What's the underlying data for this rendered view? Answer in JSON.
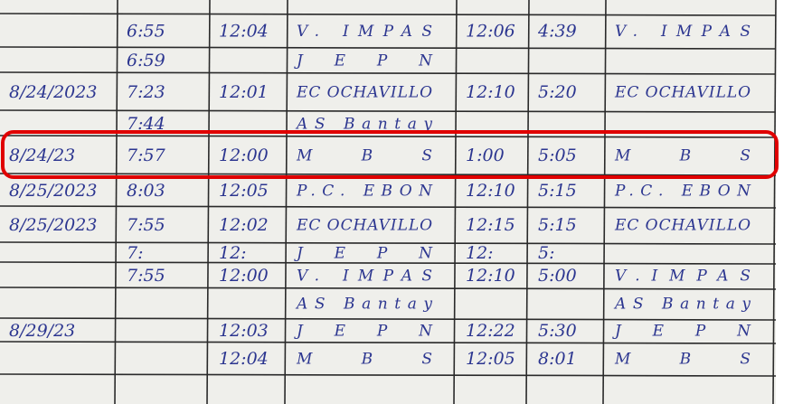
{
  "rows": [
    [
      null,
      "6:55",
      "12:04",
      "V. IMPAS",
      "12:06",
      "4:39",
      "V. IMPAS"
    ],
    [
      null,
      "6:59",
      null,
      "JEPN",
      null,
      null,
      null
    ],
    [
      "8/24/2023",
      "7:23",
      "12:01",
      "EC OCHAVILLO",
      "12:10",
      "5:20",
      "EC OCHAVILLO"
    ],
    [
      null,
      "7:44",
      null,
      "AS Bantay",
      null,
      null,
      null
    ],
    [
      "8/24/23",
      "7:57",
      "12:00",
      "MBS",
      "1:00",
      "5:05",
      "MBS"
    ],
    [
      "8/25/2023",
      "8:03",
      "12:05",
      "P.C. EBON",
      "12:10",
      "5:15",
      "P.C. EBON"
    ],
    [
      "8/25/2023",
      "7:55",
      "12:02",
      "EC OCHAVILLO",
      "12:15",
      "5:15",
      "EC OCHAVILLO"
    ],
    [
      null,
      "7:",
      "12:",
      "JEPN",
      "12:",
      "5:",
      null
    ],
    [
      null,
      "7:55",
      "12:00",
      "V. IMPAS",
      "12:10",
      "5:00",
      "V.IMPAS"
    ],
    [
      null,
      null,
      null,
      "AS Bantay",
      null,
      null,
      "AS Bantay"
    ],
    [
      "8/29/23",
      null,
      "12:03",
      "JEPN",
      "12:22",
      "5:30",
      "JEPN"
    ],
    [
      null,
      null,
      "12:04",
      "MBS",
      "12:05",
      "8:01",
      "MBS"
    ]
  ]
}
